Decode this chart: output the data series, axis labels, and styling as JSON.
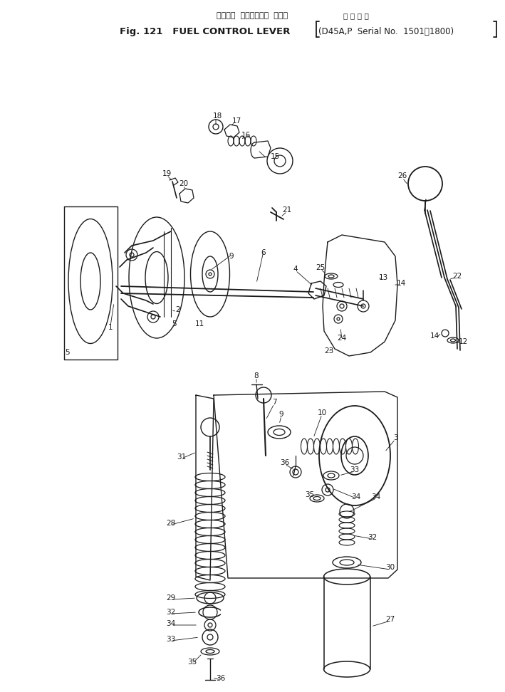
{
  "title_jp": "フェエル  コントロール  レバー",
  "title_kanji": "適 用 号 機",
  "title_en": "Fig. 121   FUEL CONTROL LEVER",
  "title_bracket": "(D45A,P  Serial No.  1501～1800)",
  "bg_color": "#ffffff",
  "lc": "#1a1a1a",
  "fig_width": 7.09,
  "fig_height": 9.72,
  "dpi": 100
}
